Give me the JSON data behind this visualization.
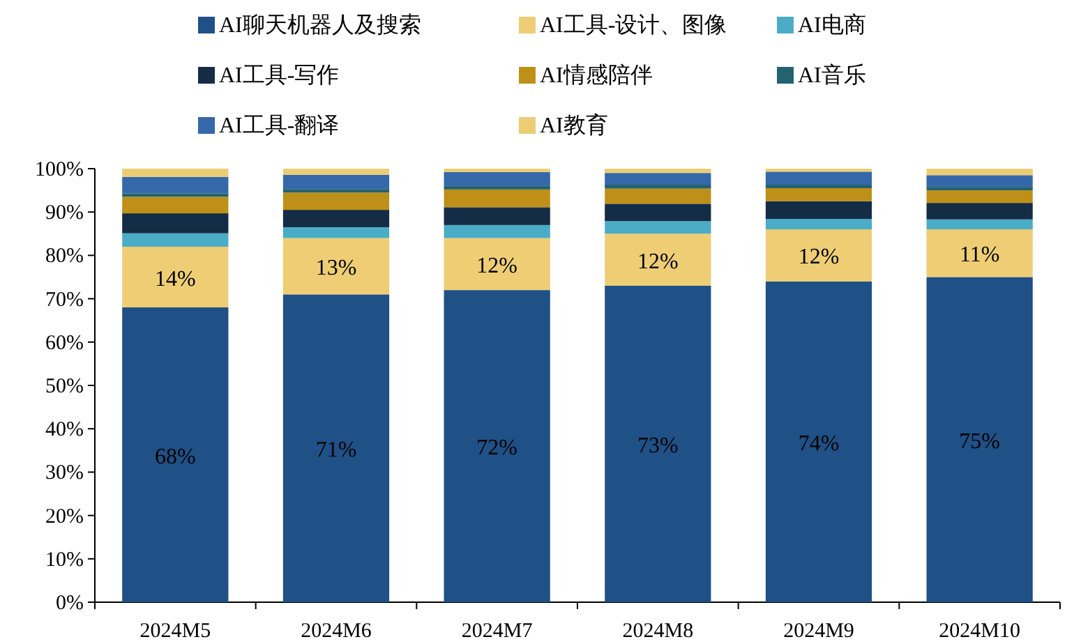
{
  "chart_data": {
    "type": "bar",
    "stacked": true,
    "legend": "top",
    "categories": [
      "2024M5",
      "2024M6",
      "2024M7",
      "2024M8",
      "2024M9",
      "2024M10"
    ],
    "ylim": [
      0,
      100
    ],
    "yticks": [
      {
        "value": 0,
        "label": "0%"
      },
      {
        "value": 10,
        "label": "10%"
      },
      {
        "value": 20,
        "label": "20%"
      },
      {
        "value": 30,
        "label": "30%"
      },
      {
        "value": 40,
        "label": "40%"
      },
      {
        "value": 50,
        "label": "50%"
      },
      {
        "value": 60,
        "label": "60%"
      },
      {
        "value": 70,
        "label": "70%"
      },
      {
        "value": 80,
        "label": "80%"
      },
      {
        "value": 90,
        "label": "90%"
      },
      {
        "value": 100,
        "label": "100%"
      }
    ],
    "series": [
      {
        "name": "AI聊天机器人及搜索",
        "color": "#1f5086",
        "values": [
          68,
          71,
          72,
          73,
          74,
          75
        ],
        "value_labels": [
          "68%",
          "71%",
          "72%",
          "73%",
          "74%",
          "75%"
        ]
      },
      {
        "name": "AI工具-设计、图像",
        "color": "#eecd75",
        "values": [
          14,
          13,
          12,
          12,
          12,
          11
        ],
        "value_labels": [
          "14%",
          "13%",
          "12%",
          "12%",
          "12%",
          "11%"
        ]
      },
      {
        "name": "AI电商",
        "color": "#4aacc6",
        "values": [
          3.1,
          2.5,
          3.0,
          2.9,
          2.4,
          2.3
        ]
      },
      {
        "name": "AI工具-写作",
        "color": "#142c46",
        "values": [
          4.6,
          4.0,
          4.1,
          4.0,
          4.1,
          3.8
        ]
      },
      {
        "name": "AI情感陪伴",
        "color": "#bf9017",
        "values": [
          3.8,
          4.0,
          4.1,
          3.5,
          3.0,
          2.9
        ]
      },
      {
        "name": "AI音乐",
        "color": "#23636f",
        "values": [
          0.8,
          0.8,
          0.8,
          0.9,
          0.8,
          0.8
        ]
      },
      {
        "name": "AI工具-翻译",
        "color": "#3468a8",
        "values": [
          3.8,
          3.3,
          3.2,
          2.7,
          3.0,
          2.7
        ]
      },
      {
        "name": "AI教育",
        "color": "#eccd74",
        "values": [
          1.9,
          1.4,
          0.8,
          1.0,
          0.7,
          1.5
        ]
      }
    ]
  }
}
